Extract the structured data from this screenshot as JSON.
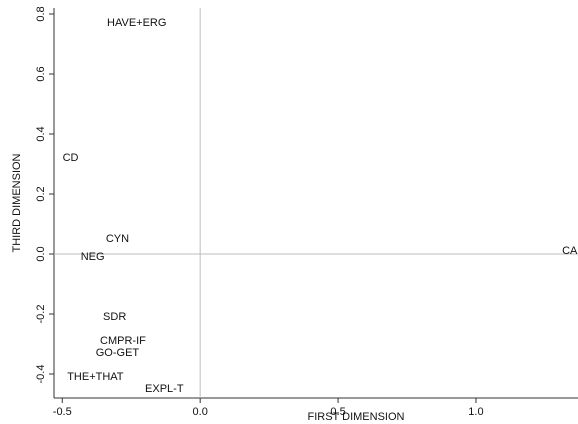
{
  "chart_data": {
    "type": "scatter",
    "xlabel": "FIRST DIMENSION",
    "ylabel": "THIRD DIMENSION",
    "xlim": [
      -0.53,
      1.37
    ],
    "ylim": [
      -0.48,
      0.82
    ],
    "x_ticks": [
      -0.5,
      0.0,
      0.5,
      1.0
    ],
    "x_tick_labels": [
      "-0.5",
      "0.0",
      "0.5",
      "1.0"
    ],
    "y_ticks": [
      -0.4,
      -0.2,
      0.0,
      0.2,
      0.4,
      0.6,
      0.8
    ],
    "y_tick_labels": [
      "-0.4",
      "-0.2",
      "0.0",
      "0.2",
      "0.4",
      "0.6",
      "0.8"
    ],
    "reference_lines": {
      "x": 0,
      "y": 0
    },
    "grid": false,
    "marker": "text-label",
    "points": [
      {
        "label": "HAVE+ERG",
        "x": -0.23,
        "y": 0.77
      },
      {
        "label": "CD",
        "x": -0.47,
        "y": 0.32
      },
      {
        "label": "CYN",
        "x": -0.3,
        "y": 0.05
      },
      {
        "label": "NEG",
        "x": -0.39,
        "y": -0.01
      },
      {
        "label": "CA",
        "x": 1.34,
        "y": 0.01
      },
      {
        "label": "SDR",
        "x": -0.31,
        "y": -0.21
      },
      {
        "label": "CMPR-IF",
        "x": -0.28,
        "y": -0.29
      },
      {
        "label": "GO-GET",
        "x": -0.3,
        "y": -0.33
      },
      {
        "label": "THE+THAT",
        "x": -0.38,
        "y": -0.41
      },
      {
        "label": "EXPL-T",
        "x": -0.13,
        "y": -0.45
      }
    ],
    "colors": {
      "text": "#111111",
      "axis": "#333333",
      "reference_line": "#bdbdbd"
    }
  }
}
